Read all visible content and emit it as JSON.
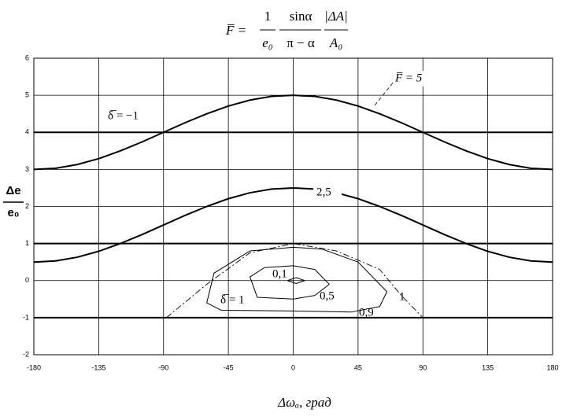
{
  "chart_data": {
    "type": "line",
    "title": {
      "lhs": "F̅ =",
      "f1_num": "1",
      "f1_den": "e₀",
      "f2_num": "sinα",
      "f2_den": "π − α",
      "f3_num": "|ΔA|",
      "f3_den": "A₀"
    },
    "x_label": "Δωₐ, град",
    "y_label": {
      "num": "Δe",
      "den": "e₀"
    },
    "xlim": [
      -180,
      180
    ],
    "xticks": [
      -180,
      -135,
      -90,
      -45,
      0,
      45,
      90,
      135,
      180
    ],
    "ylim": [
      -2,
      6
    ],
    "yticks": [
      -2,
      -1,
      0,
      1,
      2,
      3,
      4,
      5,
      6
    ],
    "grid": true,
    "annotations": [
      "F̅ = 5",
      "δ̅ = −1",
      "2,5",
      "0,1",
      "0,5",
      "0,9",
      "1",
      "δ̅ = 1"
    ],
    "series": [
      {
        "color": "#000000",
        "style": "thick",
        "x": [
          -180,
          -165,
          -150,
          -135,
          -120,
          -105,
          -90,
          -75,
          -60,
          -45,
          -30,
          -15,
          0,
          15,
          30,
          45,
          60,
          75,
          90,
          105,
          120,
          135,
          150,
          165,
          180
        ],
        "values": [
          3,
          3.03,
          3.13,
          3.29,
          3.5,
          3.74,
          4,
          4.26,
          4.5,
          4.71,
          4.87,
          4.97,
          5,
          4.97,
          4.87,
          4.71,
          4.5,
          4.26,
          4,
          3.74,
          3.5,
          3.29,
          3.13,
          3.03,
          3
        ]
      },
      {
        "color": "#000000",
        "style": "thick",
        "x": [
          -180,
          -165,
          -150,
          -135,
          -120,
          -105,
          -90,
          -75,
          -60,
          -45,
          -30,
          -15,
          0,
          15,
          30,
          45,
          60,
          75,
          90,
          105,
          120,
          135,
          150,
          165,
          180
        ],
        "values": [
          0.5,
          0.53,
          0.63,
          0.79,
          1,
          1.24,
          1.5,
          1.76,
          2,
          2.21,
          2.37,
          2.47,
          2.5,
          2.47,
          2.37,
          2.21,
          2,
          1.76,
          1.5,
          1.24,
          1,
          0.79,
          0.63,
          0.53,
          0.5
        ]
      },
      {
        "color": "#000000",
        "style": "thick",
        "x": [
          -180,
          180
        ],
        "values": [
          4,
          4
        ]
      },
      {
        "color": "#000000",
        "style": "thick",
        "x": [
          -180,
          180
        ],
        "values": [
          1,
          1
        ]
      },
      {
        "color": "#000000",
        "style": "thick",
        "x": [
          -180,
          180
        ],
        "values": [
          -1,
          -1
        ]
      },
      {
        "color": "#000000",
        "style": "dashdot",
        "x": [
          -88,
          -60,
          -30,
          0,
          30,
          60,
          75,
          90
        ],
        "values": [
          -1,
          -0.1,
          0.75,
          1,
          0.8,
          0.3,
          -0.4,
          -1
        ]
      },
      {
        "color": "#000000",
        "style": "thin",
        "x": [
          0,
          -30,
          -55,
          -60,
          -50,
          0,
          40,
          60,
          65,
          45,
          20,
          0
        ],
        "values": [
          0.9,
          0.8,
          0.2,
          -0.6,
          -0.8,
          -0.82,
          -0.85,
          -0.7,
          -0.3,
          0.5,
          0.85,
          0.9
        ]
      },
      {
        "color": "#000000",
        "style": "thin",
        "x": [
          0,
          -20,
          -30,
          -25,
          0,
          15,
          25,
          15,
          0
        ],
        "values": [
          0.4,
          0.35,
          0.1,
          -0.45,
          -0.5,
          -0.4,
          -0.1,
          0.3,
          0.4
        ]
      },
      {
        "color": "#000000",
        "style": "thin",
        "x": [
          -4,
          2,
          8,
          2,
          -4
        ],
        "values": [
          0,
          0.08,
          0,
          -0.08,
          0
        ]
      }
    ]
  }
}
